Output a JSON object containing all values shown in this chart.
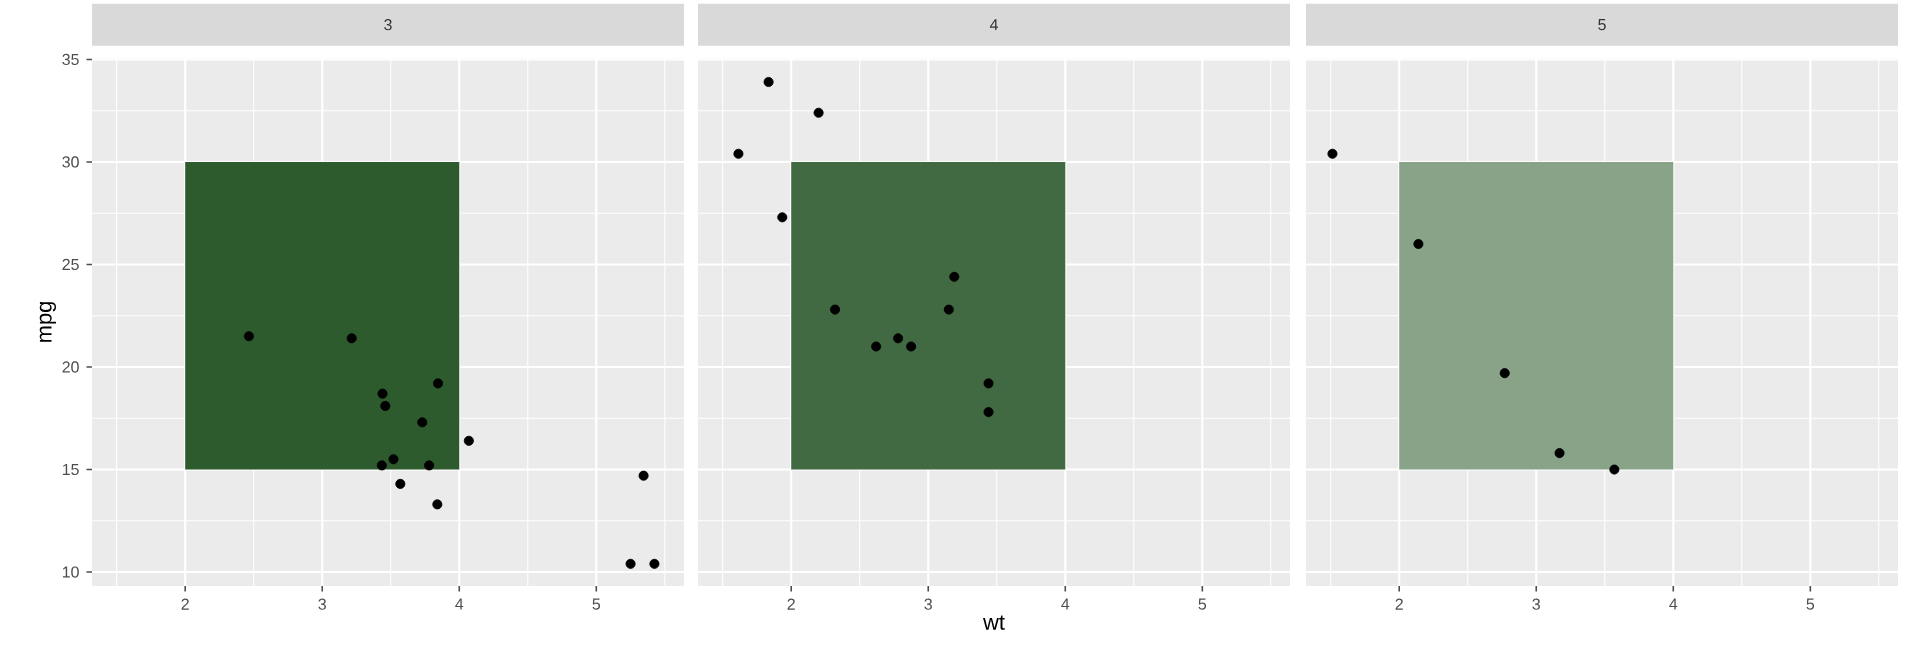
{
  "chart_data": [
    {
      "type": "scatter",
      "title": "3",
      "ylabel": "mpg",
      "xlim": [
        1.32,
        5.64
      ],
      "ylim": [
        9.32,
        35.07
      ],
      "xticks": [
        2,
        3,
        4,
        5
      ],
      "yticks": [
        10,
        15,
        20,
        25,
        30,
        35
      ],
      "grid": true,
      "marker": "circle",
      "series": [
        {
          "type": "line",
          "x": [
            2,
            4
          ],
          "values": [
            null,
            null
          ],
          "lower": [
            15,
            15
          ],
          "upper": [
            30,
            30
          ],
          "color": "#2e5b2e"
        },
        {
          "x": [
            3.215,
            3.44,
            3.46,
            3.57,
            4.07,
            3.73,
            3.78,
            5.25,
            5.424,
            5.345,
            2.465,
            3.52,
            3.435,
            3.84,
            3.845
          ],
          "values": [
            21.4,
            18.7,
            18.1,
            14.3,
            16.4,
            17.3,
            15.2,
            10.4,
            10.4,
            14.7,
            21.5,
            15.5,
            15.2,
            13.3,
            19.2
          ],
          "color": "#000000"
        }
      ]
    },
    {
      "type": "scatter",
      "title": "4",
      "xlabel": "wt",
      "xlim": [
        1.32,
        5.64
      ],
      "ylim": [
        9.32,
        35.07
      ],
      "xticks": [
        2,
        3,
        4,
        5
      ],
      "yticks": [
        10,
        15,
        20,
        25,
        30,
        35
      ],
      "grid": true,
      "tick_labels": "x",
      "marker": "circle",
      "series": [
        {
          "type": "line",
          "x": [
            2,
            4
          ],
          "values": [
            null,
            null
          ],
          "lower": [
            15,
            15
          ],
          "upper": [
            30,
            30
          ],
          "color": "#426a42"
        },
        {
          "x": [
            2.62,
            2.875,
            2.32,
            3.19,
            3.15,
            3.44,
            3.44,
            2.2,
            1.615,
            1.835,
            1.935,
            2.78
          ],
          "values": [
            21.0,
            21.0,
            22.8,
            24.4,
            22.8,
            19.2,
            17.8,
            32.4,
            30.4,
            33.9,
            27.3,
            21.4
          ],
          "color": "#000000"
        }
      ]
    },
    {
      "type": "scatter",
      "title": "5",
      "xlim": [
        1.32,
        5.64
      ],
      "ylim": [
        9.32,
        35.07
      ],
      "xticks": [
        2,
        3,
        4,
        5
      ],
      "yticks": [
        10,
        15,
        20,
        25,
        30,
        35
      ],
      "grid": true,
      "tick_labels": "x",
      "marker": "circle",
      "series": [
        {
          "type": "line",
          "x": [
            2,
            4
          ],
          "values": [
            null,
            null
          ],
          "lower": [
            15,
            15
          ],
          "upper": [
            30,
            30
          ],
          "color": "#89a389"
        },
        {
          "x": [
            2.14,
            1.513,
            3.17,
            2.77,
            3.57
          ],
          "values": [
            26.0,
            30.4,
            15.8,
            19.7,
            15.0
          ],
          "color": "#000000"
        }
      ]
    }
  ]
}
